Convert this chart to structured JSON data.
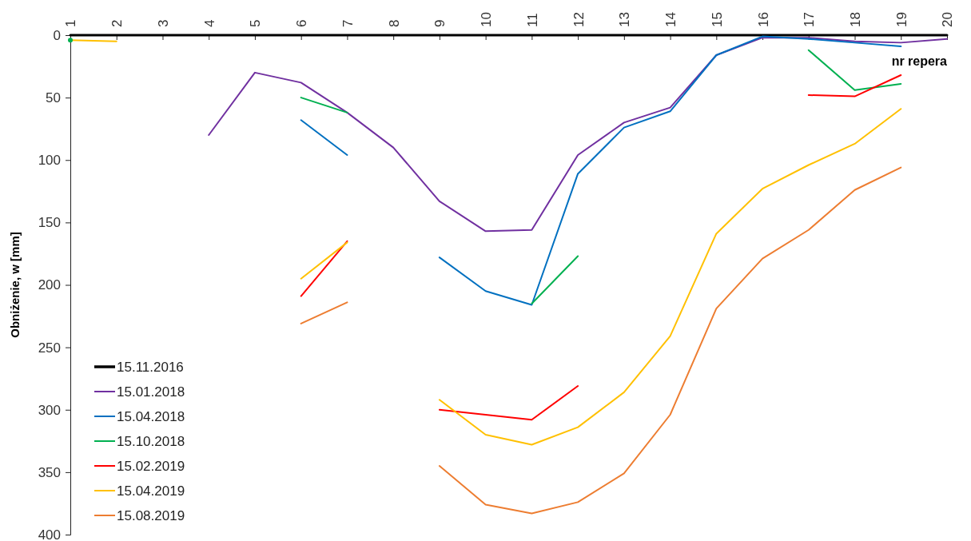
{
  "chart_data": {
    "type": "line",
    "xlabel": "nr repera",
    "ylabel": "Obniżenie, w [mm]",
    "categories": [
      "1",
      "2",
      "3",
      "4",
      "5",
      "6",
      "7",
      "8",
      "9",
      "10",
      "11",
      "12",
      "13",
      "14",
      "15",
      "16",
      "17",
      "18",
      "19",
      "20"
    ],
    "ylim": [
      400,
      0
    ],
    "yticks": [
      0,
      50,
      100,
      150,
      200,
      250,
      300,
      350,
      400
    ],
    "grid": false,
    "legend": "bottom left",
    "marker": "none",
    "line_style": "solid",
    "series": [
      {
        "name": "15.11.2016",
        "color": "#000000",
        "values": [
          0,
          0,
          0,
          0,
          0,
          0,
          0,
          0,
          0,
          0,
          0,
          0,
          0,
          0,
          0,
          0,
          0,
          0,
          0,
          0
        ]
      },
      {
        "name": "15.01.2018",
        "color": "#7030a0",
        "values": [
          null,
          null,
          null,
          80,
          30,
          38,
          62,
          90,
          133,
          157,
          156,
          96,
          70,
          58,
          16,
          2,
          2,
          5,
          6,
          3
        ]
      },
      {
        "name": "15.04.2018",
        "color": "#0070c0",
        "values": [
          null,
          null,
          null,
          null,
          null,
          68,
          96,
          null,
          178,
          205,
          216,
          111,
          74,
          61,
          16,
          1,
          3,
          6,
          9,
          null
        ]
      },
      {
        "name": "15.10.2018",
        "color": "#00b050",
        "values": [
          4,
          null,
          null,
          null,
          null,
          50,
          62,
          null,
          null,
          null,
          215,
          177,
          null,
          null,
          null,
          null,
          12,
          44,
          39,
          null
        ]
      },
      {
        "name": "15.02.2019",
        "color": "#ff0000",
        "values": [
          null,
          null,
          null,
          null,
          null,
          209,
          165,
          null,
          300,
          304,
          308,
          281,
          null,
          null,
          null,
          null,
          48,
          49,
          32,
          null
        ]
      },
      {
        "name": "15.04.2019",
        "color": "#ffc000",
        "values": [
          4,
          5,
          null,
          null,
          null,
          195,
          166,
          null,
          292,
          320,
          328,
          314,
          286,
          241,
          159,
          123,
          104,
          87,
          59,
          null
        ]
      },
      {
        "name": "15.08.2019",
        "color": "#ed7d31",
        "values": [
          null,
          null,
          null,
          null,
          null,
          231,
          214,
          null,
          345,
          376,
          383,
          374,
          351,
          304,
          219,
          179,
          156,
          124,
          106,
          null
        ]
      }
    ]
  }
}
